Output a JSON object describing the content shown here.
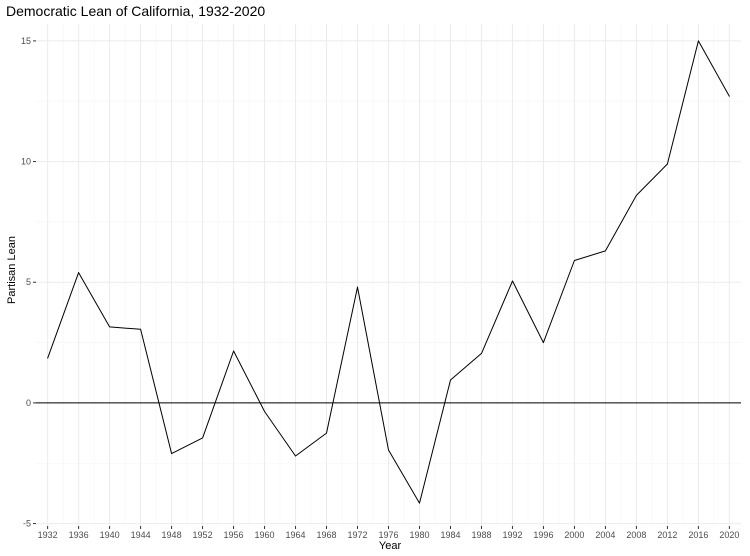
{
  "chart_data": {
    "type": "line",
    "title": "Democratic Lean of California, 1932-2020",
    "xlabel": "Year",
    "ylabel": "Partisan Lean",
    "x": [
      1932,
      1936,
      1940,
      1944,
      1948,
      1952,
      1956,
      1960,
      1964,
      1968,
      1972,
      1976,
      1980,
      1984,
      1988,
      1992,
      1996,
      2000,
      2004,
      2008,
      2012,
      2016,
      2020
    ],
    "series": [
      {
        "values": [
          1.85,
          5.4,
          3.15,
          3.05,
          -2.1,
          -1.45,
          2.15,
          -0.35,
          -2.2,
          -1.25,
          4.8,
          -1.95,
          -4.15,
          0.95,
          2.05,
          5.05,
          2.5,
          5.9,
          6.3,
          8.6,
          9.9,
          15.0,
          12.7
        ],
        "color": "#000000"
      }
    ],
    "xticks": [
      "1932",
      "1936",
      "1940",
      "1944",
      "1948",
      "1952",
      "1956",
      "1960",
      "1964",
      "1968",
      "1972",
      "1976",
      "1980",
      "1984",
      "1988",
      "1992",
      "1996",
      "2000",
      "2004",
      "2008",
      "2012",
      "2016",
      "2020"
    ],
    "yticks": [
      -5,
      0,
      5,
      10,
      15
    ],
    "xlim": [
      1930.5,
      2021.5
    ],
    "ylim": [
      -5.1,
      15.7
    ],
    "reference_line_y": 0,
    "grid": true,
    "legend": "none"
  }
}
